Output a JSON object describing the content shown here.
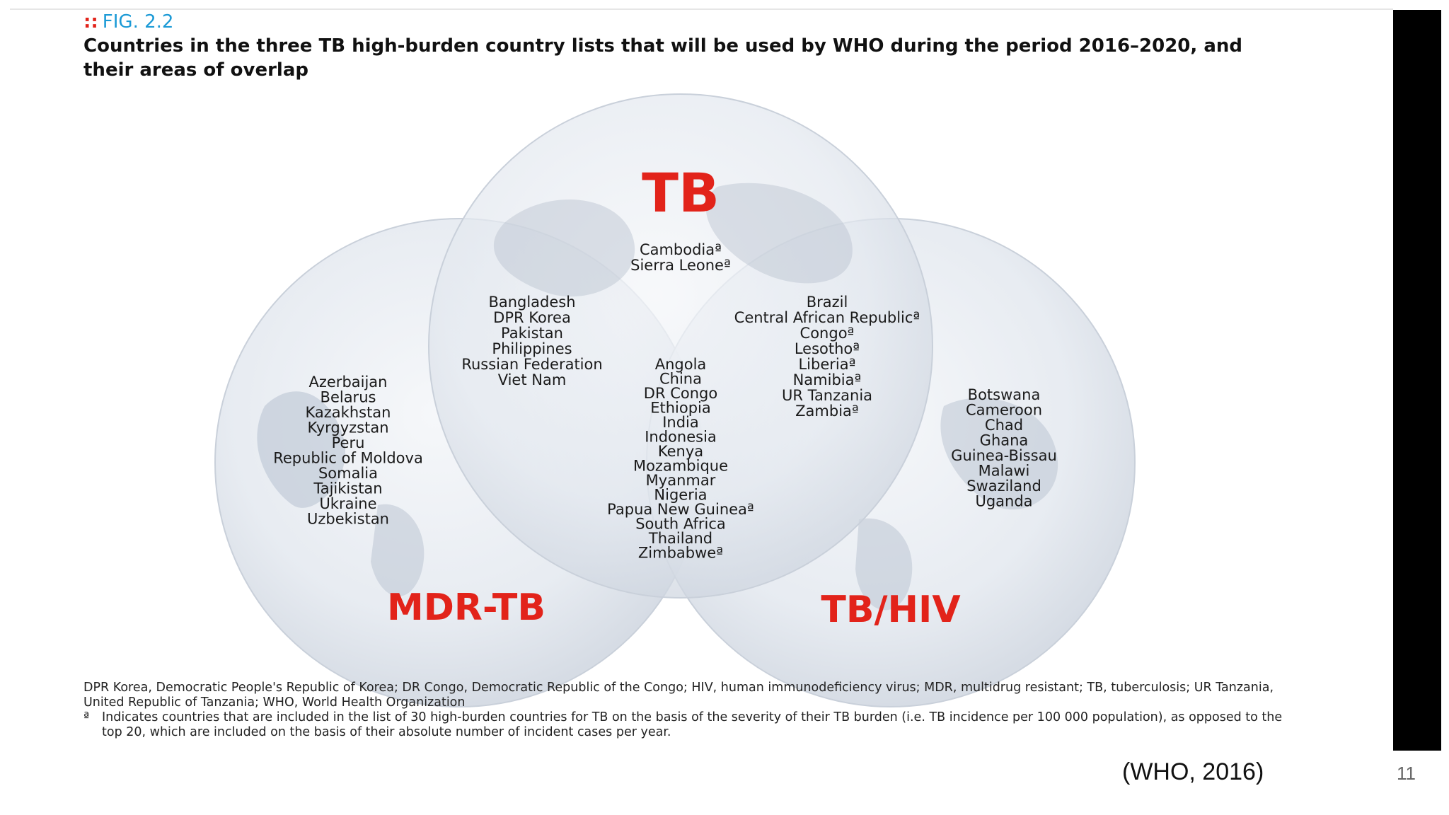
{
  "figure": {
    "label": "FIG. 2.2",
    "title": "Countries in the three TB high-burden country lists that will be used by WHO during the period 2016–2020, and their areas of overlap"
  },
  "venn": {
    "sets": {
      "tb": "TB",
      "mdr": "MDR-TB",
      "hiv": "TB/HIV"
    },
    "regions": {
      "tb_only": [
        "Cambodiaª",
        "Sierra Leoneª"
      ],
      "tb_mdr": [
        "Bangladesh",
        "DPR Korea",
        "Pakistan",
        "Philippines",
        "Russian Federation",
        "Viet Nam"
      ],
      "tb_hiv": [
        "Brazil",
        "Central African Republicª",
        "Congoª",
        "Lesothoª",
        "Liberiaª",
        "Namibiaª",
        "UR Tanzania",
        "Zambiaª"
      ],
      "all_three": [
        "Angola",
        "China",
        "DR Congo",
        "Ethiopia",
        "India",
        "Indonesia",
        "Kenya",
        "Mozambique",
        "Myanmar",
        "Nigeria",
        "Papua New Guineaª",
        "South Africa",
        "Thailand",
        "Zimbabweª"
      ],
      "mdr_only": [
        "Azerbaijan",
        "Belarus",
        "Kazakhstan",
        "Kyrgyzstan",
        "Peru",
        "Republic of Moldova",
        "Somalia",
        "Tajikistan",
        "Ukraine",
        "Uzbekistan"
      ],
      "hiv_only": [
        "Botswana",
        "Cameroon",
        "Chad",
        "Ghana",
        "Guinea-Bissau",
        "Malawi",
        "Swaziland",
        "Uganda"
      ]
    }
  },
  "notes": {
    "abbreviations": "DPR Korea, Democratic People's Republic of Korea; DR Congo, Democratic Republic of the Congo; HIV, human immunodeficiency virus; MDR, multidrug resistant; TB, tuberculosis; UR Tanzania, United Republic of Tanzania; WHO, World Health Organization",
    "footnote_mark": "ª",
    "footnote": "Indicates countries that are included in the list of 30 high-burden countries for TB on the basis of the severity of their TB burden (i.e. TB incidence per 100 000 population), as opposed to the top 20, which are included on the basis of their absolute number of incident cases per year."
  },
  "citation": "(WHO, 2016)",
  "page_number": "11",
  "colors": {
    "label_red": "#e2231a",
    "fig_blue": "#1b9ad6",
    "circle_fill": "#dfe5ee",
    "globe_land": "#b7c1cf"
  }
}
